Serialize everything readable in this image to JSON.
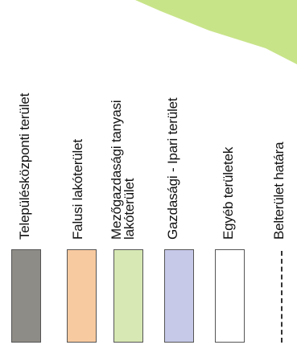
{
  "legend": {
    "items": [
      {
        "label": "Településközponti terület",
        "color": "#8e8c86"
      },
      {
        "label": "Falusi lakóterület",
        "color": "#f8caa0"
      },
      {
        "label": "Mezőgazdasági tanyasi lakóterület",
        "color": "#d7e8b4"
      },
      {
        "label": "Gazdasági - Ipari terület",
        "color": "#c6c9e8"
      },
      {
        "label": "Egyéb területek",
        "color": "#ffffff"
      },
      {
        "label": "Belterület határa",
        "line": "dashed-dark"
      }
    ],
    "background_accent_color": "#c8e489"
  }
}
